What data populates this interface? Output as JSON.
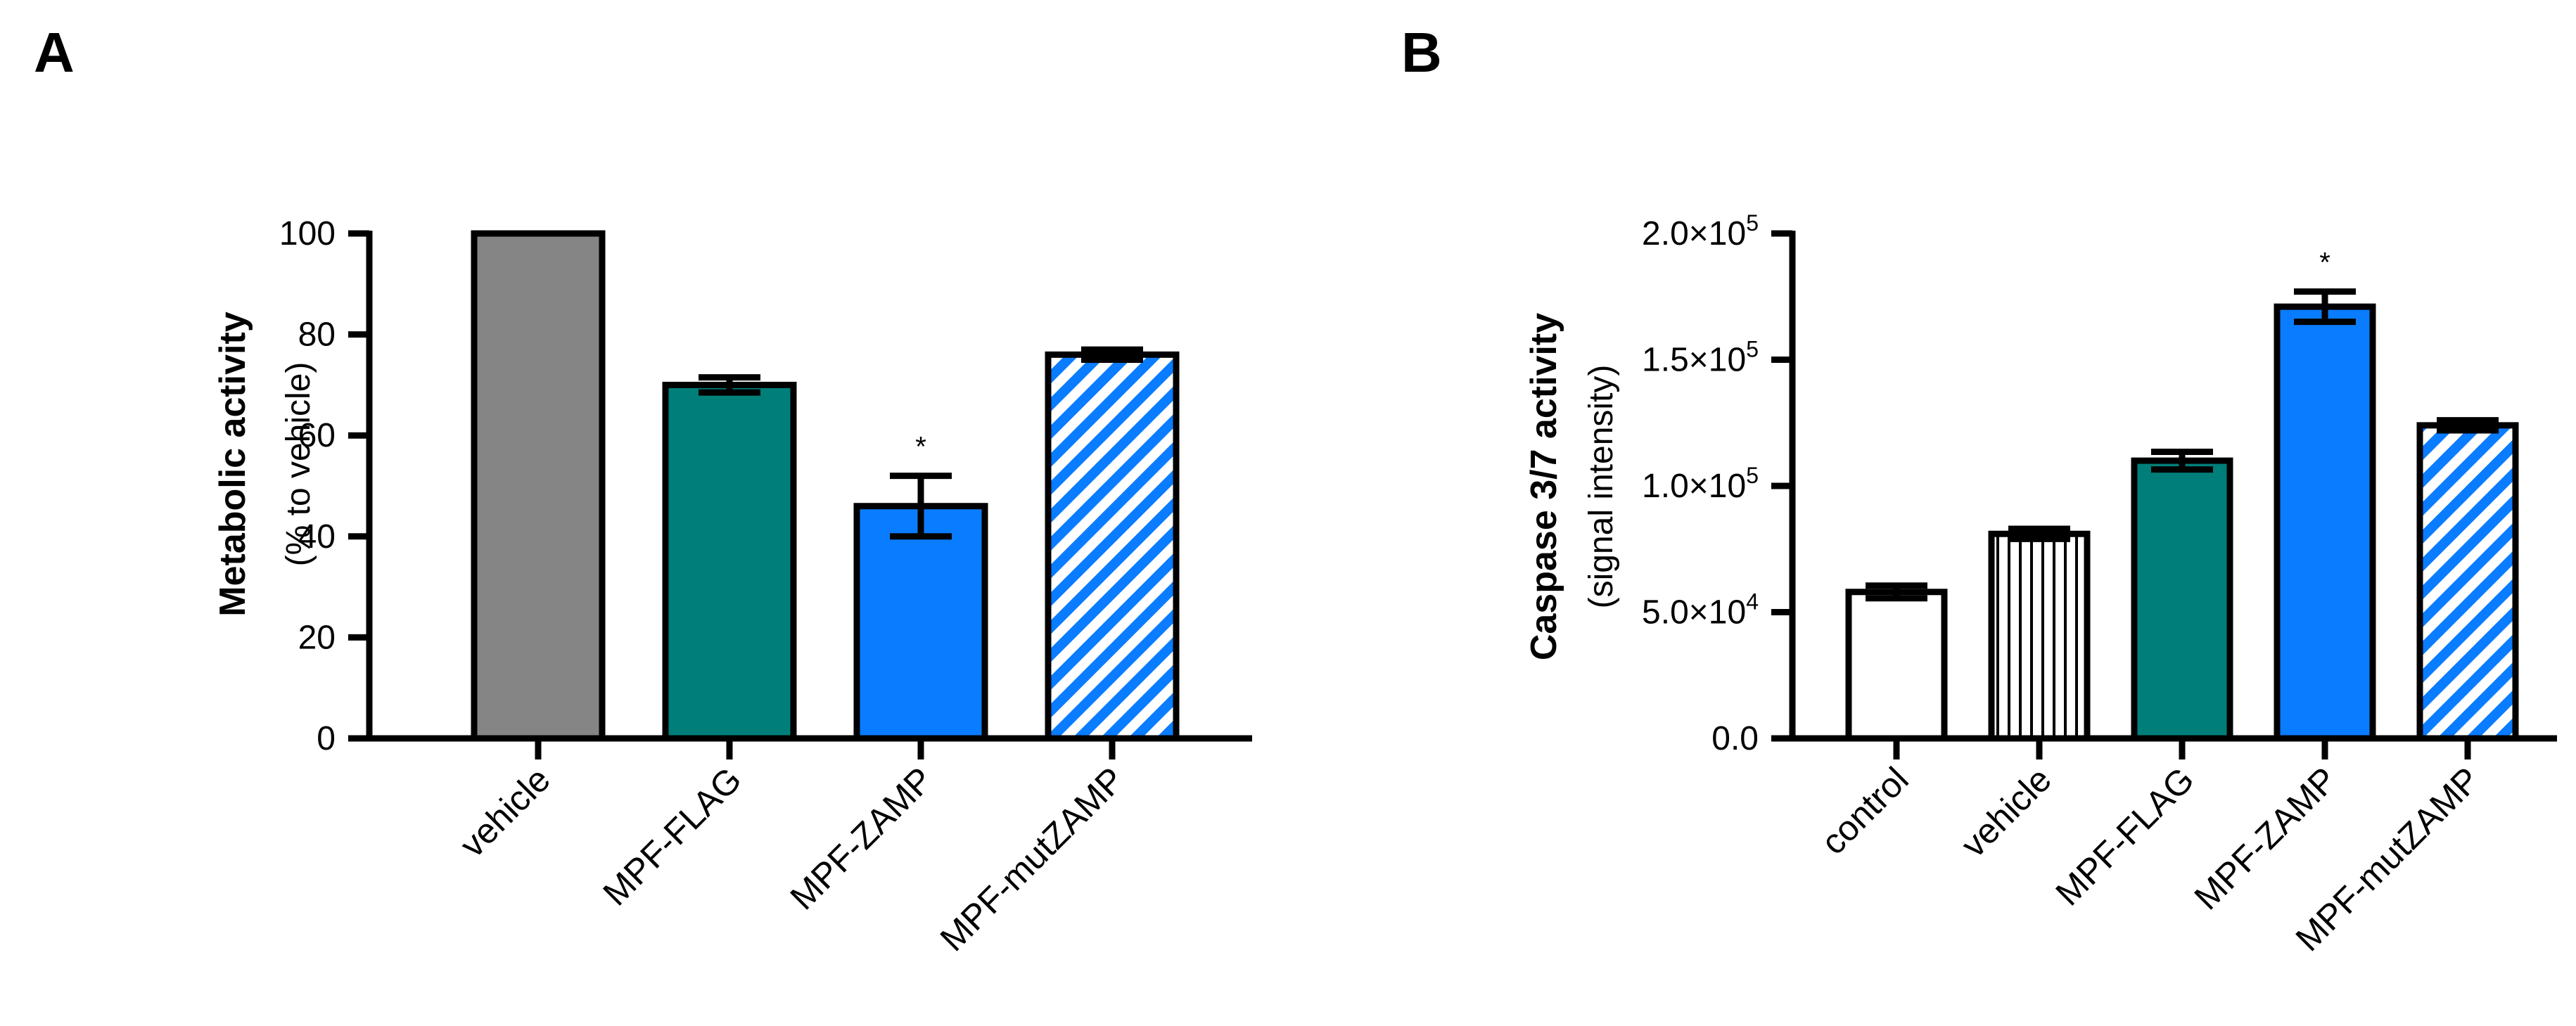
{
  "chart_data": [
    {
      "panel": "A",
      "type": "bar",
      "ylabel": "Metabolic activity",
      "ylabel_sub": "(% to vehicle)",
      "ylim": [
        0,
        100
      ],
      "yticks": [
        0,
        20,
        40,
        60,
        80,
        100
      ],
      "ytick_labels": [
        "0",
        "20",
        "40",
        "60",
        "80",
        "100"
      ],
      "categories": [
        "vehicle",
        "MPF-FLAG",
        "MPF-ZAMP",
        "MPF-mutZAMP"
      ],
      "values": [
        100,
        70,
        46,
        76
      ],
      "errors": [
        0,
        1.5,
        6,
        1
      ],
      "fills": [
        "solid",
        "solid",
        "solid",
        "hatch"
      ],
      "colors": [
        "#858585",
        "#007f7a",
        "#0a7cff",
        "#0a7cff"
      ],
      "significance": [
        "",
        "",
        "*",
        ""
      ]
    },
    {
      "panel": "B",
      "type": "bar",
      "ylabel": "Caspase 3/7 activity",
      "ylabel_sub": "(signal intensity)",
      "ylim": [
        0,
        200000
      ],
      "yticks": [
        0,
        50000,
        100000,
        150000,
        200000
      ],
      "ytick_labels": [
        {
          "base": "0.0",
          "exp": ""
        },
        {
          "base": "5.0×10",
          "exp": "4"
        },
        {
          "base": "1.0×10",
          "exp": "5"
        },
        {
          "base": "1.5×10",
          "exp": "5"
        },
        {
          "base": "2.0×10",
          "exp": "5"
        }
      ],
      "categories": [
        "control",
        "vehicle",
        "MPF-FLAG",
        "MPF-ZAMP",
        "MPF-mutZAMP"
      ],
      "values": [
        58000,
        81000,
        110000,
        171000,
        124000
      ],
      "errors": [
        2500,
        2000,
        3500,
        6000,
        2000
      ],
      "fills": [
        "solid",
        "vlines",
        "solid",
        "solid",
        "hatch"
      ],
      "colors": [
        "#ffffff",
        "#ffffff",
        "#007f7a",
        "#0a7cff",
        "#0a7cff"
      ],
      "significance": [
        "",
        "",
        "",
        "*",
        ""
      ]
    }
  ]
}
